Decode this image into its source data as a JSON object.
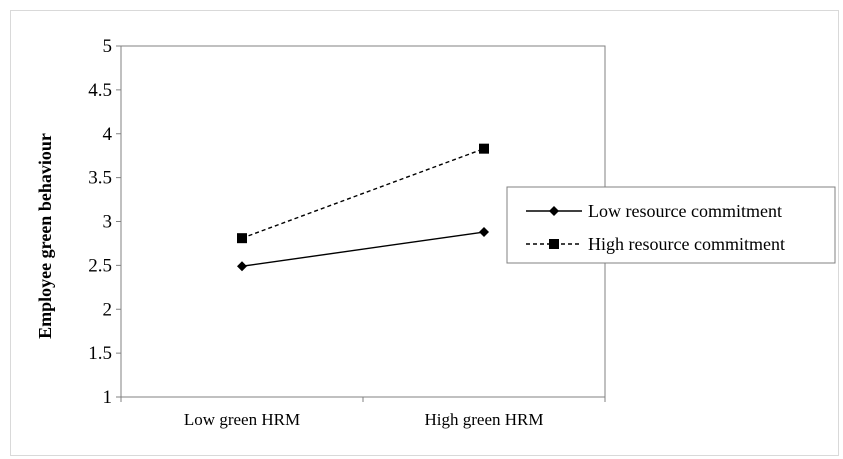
{
  "chart_data": {
    "type": "line",
    "title": "",
    "xlabel": "",
    "ylabel": "Employee green behaviour",
    "categories": [
      "Low green HRM",
      "High green HRM"
    ],
    "ylim": [
      1,
      5
    ],
    "yticks": [
      "1",
      "1.5",
      "2",
      "2.5",
      "3",
      "3.5",
      "4",
      "4.5",
      "5"
    ],
    "grid": false,
    "legend_position": "right",
    "series": [
      {
        "name": "Low resource commitment",
        "values": [
          2.49,
          2.88
        ],
        "style": "solid",
        "marker": "diamond",
        "color": "#000000"
      },
      {
        "name": "High resource commitment",
        "values": [
          2.81,
          3.83
        ],
        "style": "dashed",
        "marker": "square",
        "color": "#000000"
      }
    ]
  }
}
